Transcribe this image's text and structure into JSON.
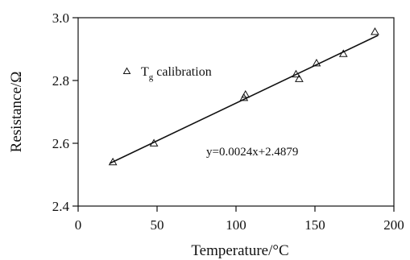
{
  "chart_data": {
    "type": "scatter",
    "xlabel": "Temperature/°C",
    "ylabel": "Resistance/Ω",
    "xlim": [
      0,
      200
    ],
    "ylim": [
      2.4,
      3.0
    ],
    "xticks": [
      "0",
      "50",
      "100",
      "150",
      "200"
    ],
    "yticks": [
      "2.4",
      "2.6",
      "2.8",
      "3.0"
    ],
    "grid": false,
    "legend": {
      "position": "top-left",
      "marker": "△",
      "label_main": "T",
      "label_sub": "g",
      "label_rest": " calibration"
    },
    "series": [
      {
        "name": "Tg calibration",
        "marker": "open-triangle",
        "points": [
          {
            "x": 22,
            "y": 2.54
          },
          {
            "x": 48,
            "y": 2.6
          },
          {
            "x": 105,
            "y": 2.745
          },
          {
            "x": 106,
            "y": 2.755
          },
          {
            "x": 138,
            "y": 2.82
          },
          {
            "x": 140,
            "y": 2.805
          },
          {
            "x": 151,
            "y": 2.855
          },
          {
            "x": 168,
            "y": 2.885
          },
          {
            "x": 188,
            "y": 2.955
          }
        ]
      }
    ],
    "fit_line": {
      "slope": 0.0024,
      "intercept": 2.4879,
      "x_start": 20,
      "x_end": 190
    },
    "annotation": "y=0.0024x+2.4879"
  }
}
